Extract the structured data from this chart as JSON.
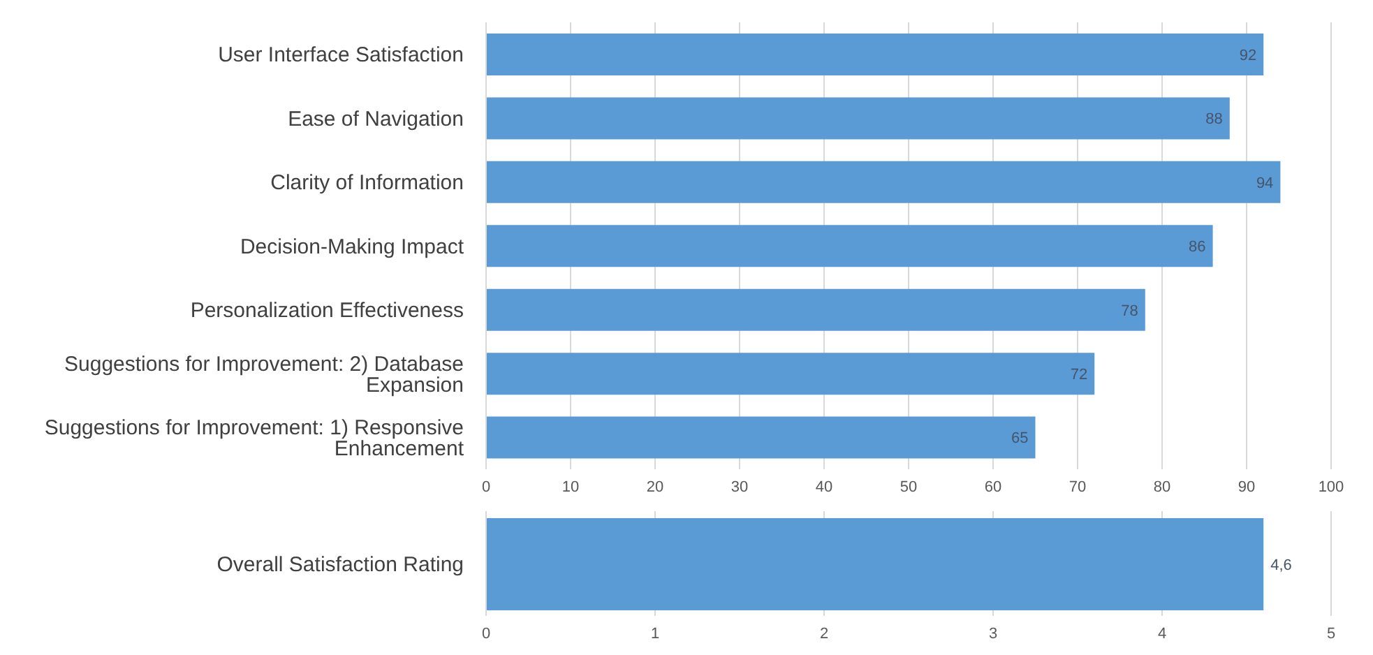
{
  "chart_data": [
    {
      "type": "bar",
      "orientation": "horizontal",
      "categories": [
        "User Interface Satisfaction",
        "Ease of Navigation",
        "Clarity of Information",
        "Decision-Making Impact",
        "Personalization Effectiveness",
        "Suggestions for Improvement: 2) Database Expansion",
        "Suggestions for Improvement: 1) Responsive Enhancement"
      ],
      "values": [
        92,
        88,
        94,
        86,
        78,
        72,
        65
      ],
      "color": "#5b9bd5",
      "xlim": [
        0,
        100
      ],
      "xticks": [
        0,
        10,
        20,
        30,
        40,
        50,
        60,
        70,
        80,
        90,
        100
      ],
      "grid": "x",
      "data_labels": true
    },
    {
      "type": "bar",
      "orientation": "horizontal",
      "categories": [
        "Overall Satisfaction Rating"
      ],
      "values": [
        4.6
      ],
      "value_labels": [
        "4,6"
      ],
      "color": "#5b9bd5",
      "xlim": [
        0,
        5
      ],
      "xticks": [
        0,
        1,
        2,
        3,
        4,
        5
      ],
      "grid": "x"
    }
  ]
}
